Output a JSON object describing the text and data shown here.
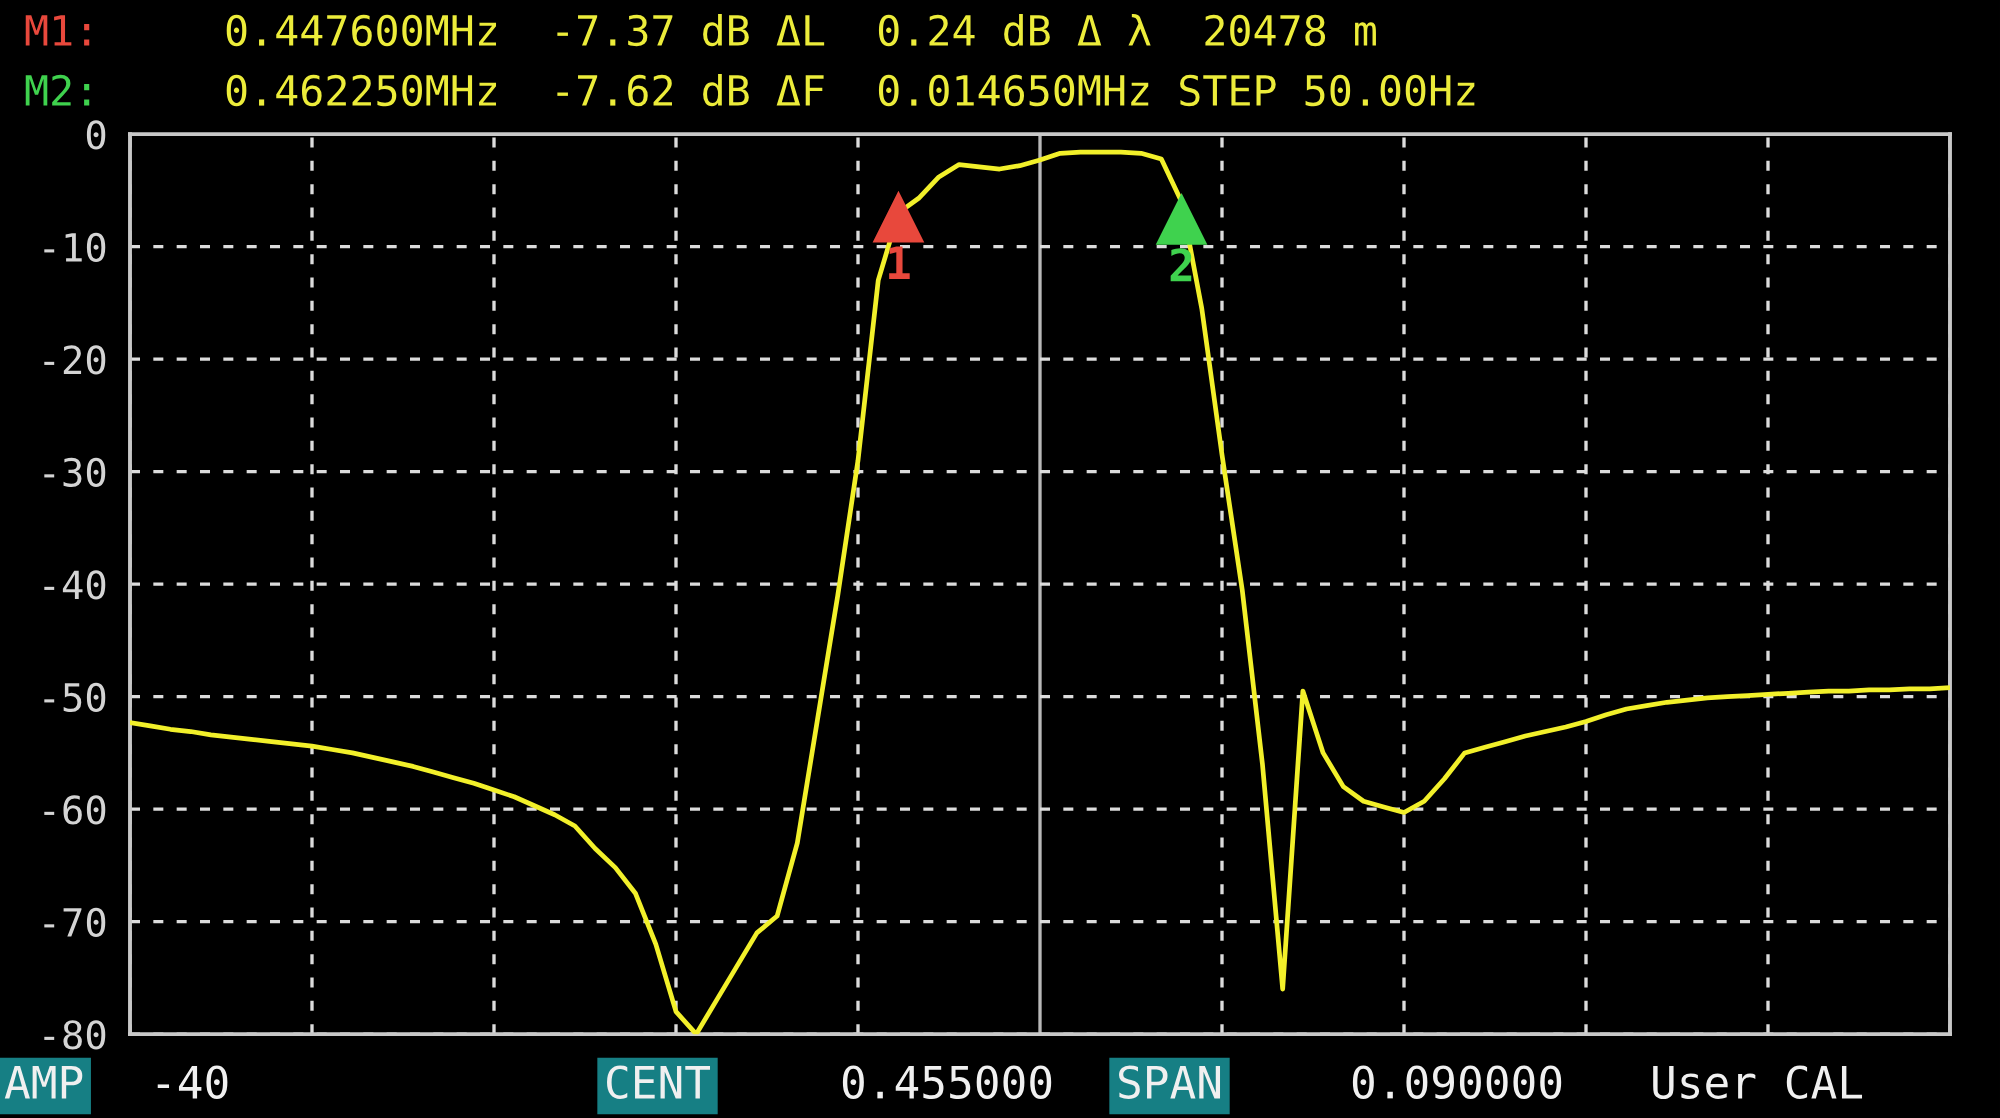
{
  "chart_data": {
    "type": "line",
    "title": "M1:  0.447600MHz  -7.37 dB ΔL  0.24 dB Δ λ  20478 m",
    "subtitle": "M2:  0.462250MHz  -7.62 dB ΔF  0.014650MHz STEP 50.00Hz",
    "categories": [
      null,
      null,
      null,
      null,
      null,
      null,
      null,
      null,
      null,
      null,
      null,
      null,
      null,
      null,
      null,
      null,
      null,
      null,
      null,
      null,
      null,
      null,
      null,
      null,
      null,
      null,
      null,
      null,
      null,
      null,
      null,
      null,
      null,
      null,
      null,
      null,
      null,
      null,
      null,
      null,
      null,
      null,
      null,
      null,
      null,
      null,
      null,
      null,
      null,
      null,
      null,
      null,
      null,
      null,
      null,
      null,
      null,
      null,
      null,
      null,
      null,
      null,
      null,
      null,
      null,
      null,
      null,
      null,
      null,
      null,
      null,
      null,
      null,
      null,
      null,
      null,
      null,
      null,
      null,
      null,
      null,
      null,
      null,
      null,
      null,
      null,
      null,
      null,
      null,
      null,
      null
    ],
    "series": [
      {
        "color": "#f2f02a",
        "values": [
          -52.3,
          -52.6,
          -52.9,
          -53.1,
          -53.4,
          -53.6,
          -53.8,
          -54,
          -54.2,
          -54.4,
          -54.7,
          -55,
          -55.4,
          -55.8,
          -56.2,
          -56.7,
          -57.2,
          -57.7,
          -58.3,
          -58.9,
          -59.7,
          -60.5,
          -61.5,
          -63.5,
          -65.2,
          -67.5,
          -72,
          -78,
          -80,
          -77,
          -74,
          -71,
          -69.5,
          -63,
          -52,
          -41,
          -29,
          -13,
          -7,
          -5.7,
          -3.8,
          -2.7,
          -2.9,
          -3.1,
          -2.8,
          -2.3,
          -1.7,
          -1.6,
          -1.6,
          -1.6,
          -1.7,
          -2.2,
          -6,
          -15.5,
          -28.5,
          -40.5,
          -56,
          -76,
          -49.5,
          -55,
          -58,
          -59.3,
          -59.8,
          -60.3,
          -59.3,
          -57.3,
          -55,
          -54.5,
          -54,
          -53.5,
          -53.1,
          -52.7,
          -52.2,
          -51.6,
          -51.1,
          -50.8,
          -50.5,
          -50.3,
          -50.1,
          -50,
          -49.9,
          -49.8,
          -49.7,
          -49.6,
          -49.5,
          -49.5,
          -49.4,
          -49.4,
          -49.3,
          -49.3,
          -49.2
        ]
      },
      {
        "type": "scatter",
        "name": "1",
        "color": "#e8483c",
        "marker": "triangle",
        "values": [
          null,
          null,
          null,
          null,
          null,
          null,
          null,
          null,
          null,
          null,
          null,
          null,
          null,
          null,
          null,
          null,
          null,
          null,
          null,
          null,
          null,
          null,
          null,
          null,
          null,
          null,
          null,
          null,
          null,
          null,
          null,
          null,
          null,
          null,
          null,
          null,
          null,
          null,
          -7.4,
          null,
          null,
          null,
          null,
          null,
          null,
          null,
          null,
          null,
          null,
          null,
          null,
          null,
          null,
          null,
          null,
          null,
          null,
          null,
          null,
          null,
          null,
          null,
          null,
          null,
          null,
          null,
          null,
          null,
          null,
          null,
          null,
          null,
          null,
          null,
          null,
          null,
          null,
          null,
          null,
          null,
          null,
          null,
          null,
          null,
          null,
          null,
          null,
          null,
          null,
          null,
          null
        ]
      },
      {
        "type": "scatter",
        "name": "2",
        "color": "#3fd24e",
        "marker": "triangle",
        "values": [
          null,
          null,
          null,
          null,
          null,
          null,
          null,
          null,
          null,
          null,
          null,
          null,
          null,
          null,
          null,
          null,
          null,
          null,
          null,
          null,
          null,
          null,
          null,
          null,
          null,
          null,
          null,
          null,
          null,
          null,
          null,
          null,
          null,
          null,
          null,
          null,
          null,
          null,
          null,
          null,
          null,
          null,
          null,
          null,
          null,
          null,
          null,
          null,
          null,
          null,
          null,
          null,
          -7.6,
          null,
          null,
          null,
          null,
          null,
          null,
          null,
          null,
          null,
          null,
          null,
          null,
          null,
          null,
          null,
          null,
          null,
          null,
          null,
          null,
          null,
          null,
          null,
          null,
          null,
          null,
          null,
          null,
          null,
          null,
          null,
          null,
          null,
          null,
          null,
          null,
          null,
          null
        ]
      }
    ],
    "ylim": [
      -80,
      0
    ],
    "yticks": [
      0,
      -10,
      -20,
      -30,
      -40,
      -50,
      -60,
      -70,
      -80
    ],
    "tick_labels": "y",
    "grid": true,
    "annotations": [
      "AMP",
      "-40",
      "CENT",
      "0.455000",
      "SPAN",
      "0.090000",
      "User CAL"
    ]
  }
}
